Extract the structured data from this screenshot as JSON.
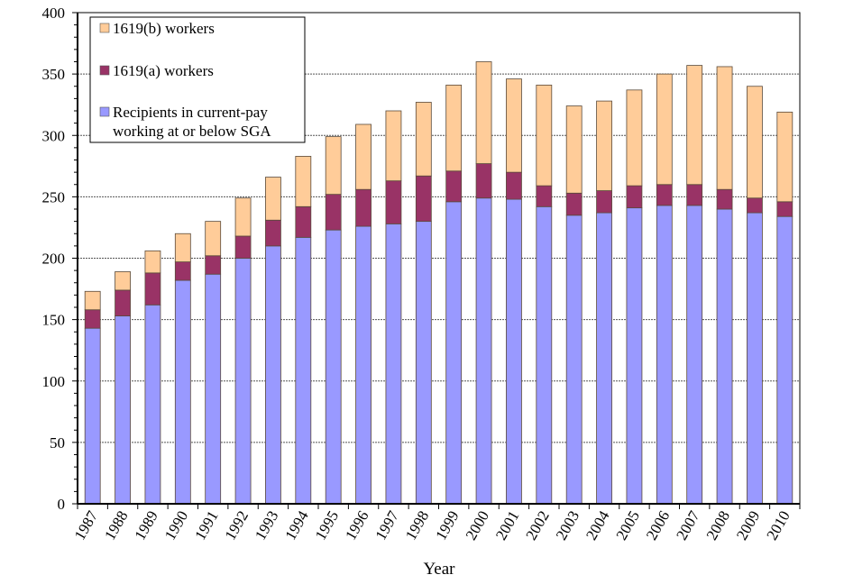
{
  "chart_data": {
    "type": "bar",
    "stacked": true,
    "title": "",
    "xlabel": "Year",
    "ylabel": "",
    "ylim": [
      0,
      400
    ],
    "yticks": [
      0,
      50,
      100,
      150,
      200,
      250,
      300,
      350,
      400
    ],
    "grid": "horizontal dashed at major ticks",
    "legend_position": "top-left",
    "categories": [
      "1987",
      "1988",
      "1989",
      "1990",
      "1991",
      "1992",
      "1993",
      "1994",
      "1995",
      "1996",
      "1997",
      "1998",
      "1999",
      "2000",
      "2001",
      "2002",
      "2003",
      "2004",
      "2005",
      "2006",
      "2007",
      "2008",
      "2009",
      "2010"
    ],
    "series": [
      {
        "name": "Recipients in current-pay working at or below SGA",
        "legend_lines": [
          "Recipients in current-pay",
          "working at or below SGA"
        ],
        "color": "#9999ff",
        "values": [
          143,
          153,
          162,
          182,
          187,
          200,
          210,
          217,
          223,
          226,
          228,
          230,
          246,
          249,
          248,
          242,
          235,
          237,
          241,
          243,
          243,
          240,
          237,
          234
        ]
      },
      {
        "name": "1619(a) workers",
        "legend_lines": [
          "1619(a) workers"
        ],
        "color": "#993366",
        "values": [
          15,
          21,
          26,
          15,
          15,
          18,
          21,
          25,
          29,
          30,
          35,
          37,
          25,
          28,
          22,
          17,
          18,
          18,
          18,
          17,
          17,
          16,
          12,
          12
        ]
      },
      {
        "name": "1619(b) workers",
        "legend_lines": [
          "1619(b) workers"
        ],
        "color": "#ffcc99",
        "values": [
          15,
          15,
          18,
          23,
          28,
          31,
          35,
          41,
          47,
          53,
          57,
          60,
          70,
          83,
          76,
          82,
          71,
          73,
          78,
          90,
          97,
          100,
          91,
          73
        ]
      }
    ]
  }
}
